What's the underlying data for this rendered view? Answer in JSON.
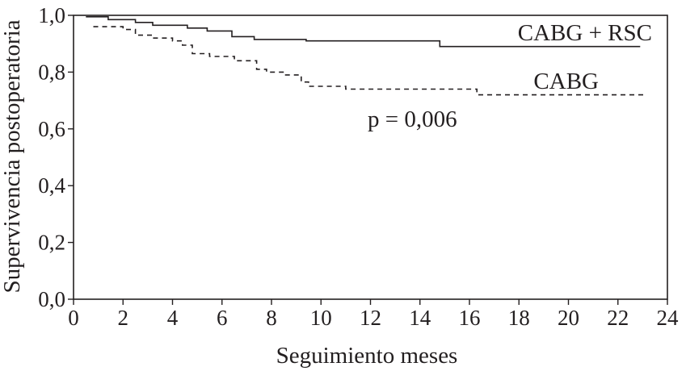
{
  "chart_data": {
    "type": "line",
    "title": "",
    "xlabel": "Seguimiento meses",
    "ylabel": "Supervivencia postoperatoria",
    "xlim": [
      0,
      24
    ],
    "ylim": [
      0,
      1
    ],
    "xticks": [
      0,
      2,
      4,
      6,
      8,
      10,
      12,
      14,
      16,
      18,
      20,
      22,
      24
    ],
    "xtick_labels": [
      "0",
      "2",
      "4",
      "6",
      "8",
      "10",
      "12",
      "14",
      "16",
      "18",
      "20",
      "22",
      "24"
    ],
    "yticks": [
      0,
      0.2,
      0.4,
      0.6,
      0.8,
      1.0
    ],
    "ytick_labels": [
      "0,0",
      "0,2",
      "0,4",
      "0,6",
      "0,8",
      "1,0"
    ],
    "grid": false,
    "step": true,
    "series": [
      {
        "name": "CABG + RSC",
        "line_style": "solid",
        "color": "#231f20",
        "x": [
          0.5,
          1.4,
          2.5,
          3.2,
          4.6,
          5.4,
          6.4,
          7.3,
          9.4,
          14.8,
          22.9
        ],
        "y": [
          0.995,
          0.985,
          0.975,
          0.965,
          0.955,
          0.945,
          0.925,
          0.915,
          0.91,
          0.89,
          0.89
        ]
      },
      {
        "name": "CABG",
        "line_style": "dashed",
        "color": "#231f20",
        "x": [
          0.8,
          2.0,
          2.5,
          3.2,
          4.0,
          4.4,
          4.8,
          5.5,
          6.5,
          7.4,
          7.8,
          8.5,
          9.2,
          9.5,
          11.0,
          16.3,
          23.1
        ],
        "y": [
          0.96,
          0.95,
          0.93,
          0.92,
          0.91,
          0.895,
          0.865,
          0.855,
          0.84,
          0.81,
          0.8,
          0.79,
          0.765,
          0.75,
          0.74,
          0.72,
          0.72
        ]
      }
    ],
    "annotations": [
      {
        "text": "p = 0,006"
      }
    ]
  }
}
